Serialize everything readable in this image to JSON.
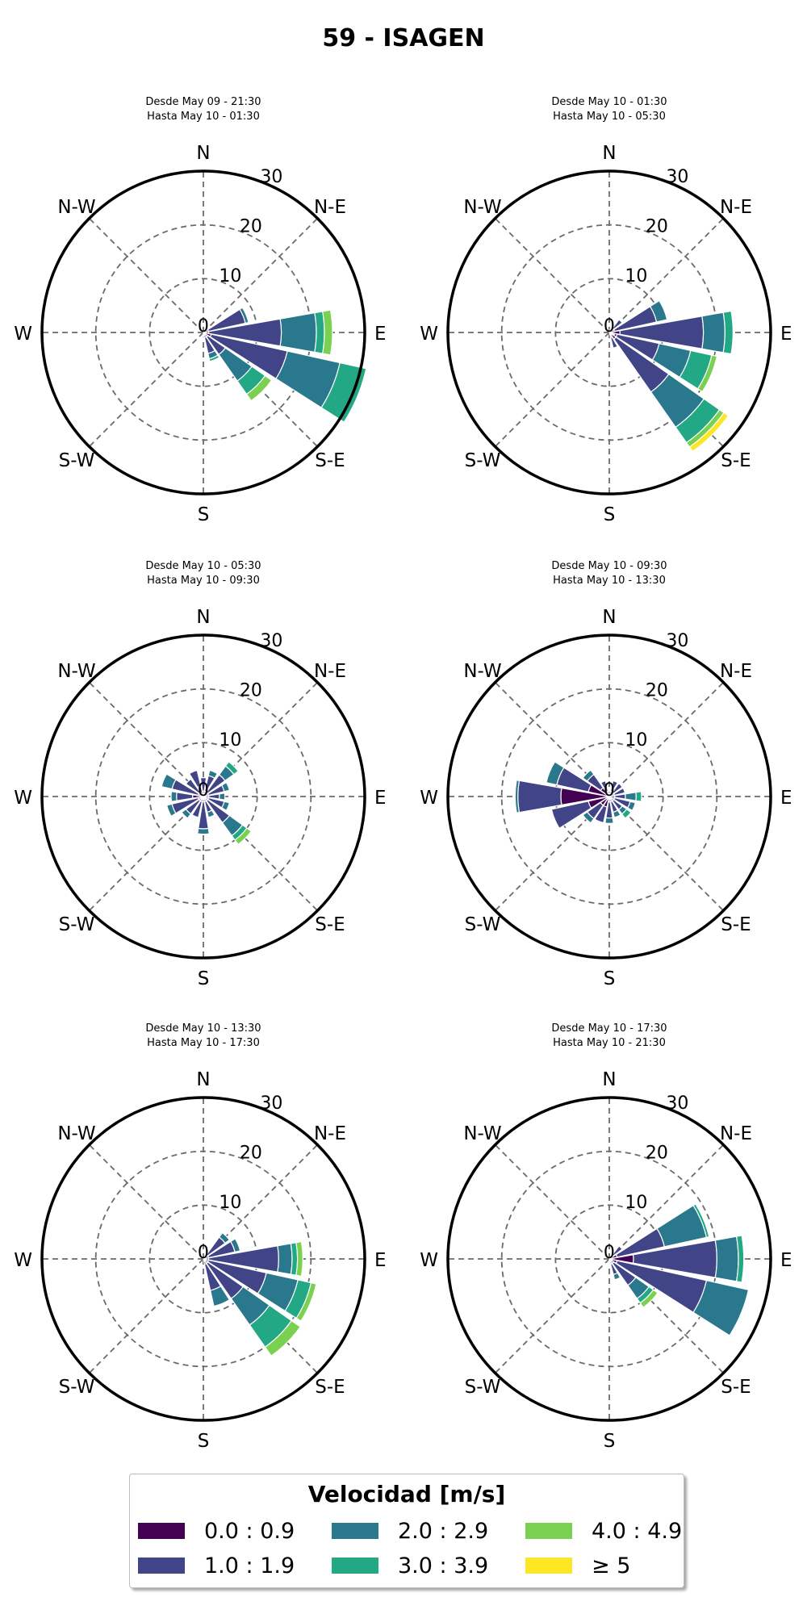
{
  "title": "59 - ISAGEN",
  "legend": {
    "title": "Velocidad [m/s]",
    "bins": [
      {
        "label": "0.0 : 0.9",
        "color": "#440154"
      },
      {
        "label": "1.0 : 1.9",
        "color": "#414487"
      },
      {
        "label": "2.0 : 2.9",
        "color": "#2a788e"
      },
      {
        "label": "3.0 : 3.9",
        "color": "#22a884"
      },
      {
        "label": "4.0 : 4.9",
        "color": "#7ad151"
      },
      {
        "label": "≥  5",
        "color": "#fde725"
      }
    ]
  },
  "chart_data": [
    {
      "type": "windrose",
      "title": "Desde May 09 - 21:30\nHasta May 10 - 01:30",
      "radial_ticks": [
        "0",
        "10",
        "20",
        "30"
      ],
      "rlim": [
        0,
        30
      ],
      "direction_labels": [
        "N",
        "N-E",
        "E",
        "S-E",
        "S",
        "S-W",
        "W",
        "N-W"
      ],
      "grid": true,
      "petals": [
        {
          "dir": 67.5,
          "width": 20,
          "segments": [
            1,
            7,
            0.6
          ]
        },
        {
          "dir": 90,
          "width": 20,
          "segments": [
            1,
            13.5,
            6.5,
            1.5,
            1.5
          ]
        },
        {
          "dir": 112.5,
          "width": 20,
          "segments": [
            1.5,
            14.5,
            10,
            5
          ]
        },
        {
          "dir": 135,
          "width": 20,
          "segments": [
            1,
            4,
            6,
            3,
            1.5
          ]
        },
        {
          "dir": 157.5,
          "width": 20,
          "segments": [
            1,
            3,
            1,
            0.5
          ]
        },
        {
          "dir": 180,
          "width": 16,
          "segments": [
            1
          ]
        },
        {
          "dir": 45,
          "width": 16,
          "segments": [
            1
          ]
        }
      ]
    },
    {
      "type": "windrose",
      "title": "Desde May 10 - 01:30\nHasta May 10 - 05:30",
      "radial_ticks": [
        "0",
        "10",
        "20",
        "30"
      ],
      "rlim": [
        0,
        30
      ],
      "direction_labels": [
        "N",
        "N-E",
        "E",
        "S-E",
        "S",
        "S-W",
        "W",
        "N-W"
      ],
      "grid": true,
      "petals": [
        {
          "dir": 45,
          "width": 16,
          "segments": [
            1,
            2
          ]
        },
        {
          "dir": 67.5,
          "width": 20,
          "segments": [
            1,
            8,
            2
          ]
        },
        {
          "dir": 90,
          "width": 20,
          "segments": [
            2,
            15.5,
            4,
            1.5
          ]
        },
        {
          "dir": 112.5,
          "width": 20,
          "segments": [
            1.5,
            8,
            6,
            4,
            1
          ]
        },
        {
          "dir": 135,
          "width": 20,
          "segments": [
            1.5,
            12,
            8,
            3.5,
            1,
            1
          ]
        },
        {
          "dir": 157.5,
          "width": 16,
          "segments": [
            1,
            2
          ]
        },
        {
          "dir": 112.5,
          "width": 8,
          "segments": [
            1
          ]
        },
        {
          "dir": 22.5,
          "width": 14,
          "segments": [
            1
          ]
        }
      ]
    },
    {
      "type": "windrose",
      "title": "Desde May 10 - 05:30\nHasta May 10 - 09:30",
      "radial_ticks": [
        "0",
        "10",
        "20",
        "30"
      ],
      "rlim": [
        0,
        30
      ],
      "direction_labels": [
        "N",
        "N-E",
        "E",
        "S-E",
        "S",
        "S-W",
        "W",
        "N-W"
      ],
      "grid": true,
      "petals": [
        {
          "dir": 0,
          "width": 18,
          "segments": [
            1,
            2.5
          ]
        },
        {
          "dir": 22.5,
          "width": 18,
          "segments": [
            1,
            3,
            1
          ]
        },
        {
          "dir": 45,
          "width": 18,
          "segments": [
            1,
            4,
            2,
            1
          ]
        },
        {
          "dir": 67.5,
          "width": 18,
          "segments": [
            1,
            3,
            1
          ]
        },
        {
          "dir": 90,
          "width": 18,
          "segments": [
            1,
            2,
            1
          ]
        },
        {
          "dir": 112.5,
          "width": 18,
          "segments": [
            1,
            3,
            1
          ]
        },
        {
          "dir": 135,
          "width": 18,
          "segments": [
            1,
            5,
            3,
            1,
            1
          ]
        },
        {
          "dir": 157.5,
          "width": 18,
          "segments": [
            1,
            2,
            1
          ]
        },
        {
          "dir": 180,
          "width": 18,
          "segments": [
            1,
            5,
            1
          ]
        },
        {
          "dir": 202.5,
          "width": 18,
          "segments": [
            1,
            3
          ]
        },
        {
          "dir": 225,
          "width": 18,
          "segments": [
            1,
            3,
            1
          ]
        },
        {
          "dir": 247.5,
          "width": 18,
          "segments": [
            1,
            5,
            1
          ]
        },
        {
          "dir": 270,
          "width": 18,
          "segments": [
            2,
            3,
            1
          ]
        },
        {
          "dir": 292.5,
          "width": 18,
          "segments": [
            1,
            5,
            2
          ]
        },
        {
          "dir": 315,
          "width": 18,
          "segments": [
            1,
            3
          ]
        },
        {
          "dir": 337.5,
          "width": 18,
          "segments": [
            2,
            3
          ]
        }
      ]
    },
    {
      "type": "windrose",
      "title": "Desde May 10 - 09:30\nHasta May 10 - 13:30",
      "radial_ticks": [
        "0",
        "10",
        "20",
        "30"
      ],
      "rlim": [
        0,
        30
      ],
      "direction_labels": [
        "N",
        "N-E",
        "E",
        "S-E",
        "S",
        "S-W",
        "W",
        "N-W"
      ],
      "grid": true,
      "petals": [
        {
          "dir": 270,
          "width": 20,
          "segments": [
            9,
            8,
            0.5
          ]
        },
        {
          "dir": 292.5,
          "width": 20,
          "segments": [
            4,
            6,
            2
          ]
        },
        {
          "dir": 315,
          "width": 20,
          "segments": [
            2,
            3,
            1
          ]
        },
        {
          "dir": 247.5,
          "width": 20,
          "segments": [
            4,
            7
          ]
        },
        {
          "dir": 225,
          "width": 20,
          "segments": [
            2,
            3,
            1
          ]
        },
        {
          "dir": 202.5,
          "width": 20,
          "segments": [
            2,
            3
          ]
        },
        {
          "dir": 180,
          "width": 18,
          "segments": [
            1,
            3,
            1
          ]
        },
        {
          "dir": 157.5,
          "width": 18,
          "segments": [
            1,
            2,
            1
          ]
        },
        {
          "dir": 135,
          "width": 18,
          "segments": [
            1,
            2,
            1,
            1
          ]
        },
        {
          "dir": 112.5,
          "width": 18,
          "segments": [
            1,
            3,
            1
          ]
        },
        {
          "dir": 90,
          "width": 18,
          "segments": [
            1,
            2,
            2,
            1
          ]
        },
        {
          "dir": 67.5,
          "width": 18,
          "segments": [
            1,
            2
          ]
        },
        {
          "dir": 45,
          "width": 18,
          "segments": [
            1,
            2
          ]
        },
        {
          "dir": 22.5,
          "width": 18,
          "segments": [
            1,
            2
          ]
        },
        {
          "dir": 0,
          "width": 18,
          "segments": [
            1
          ]
        },
        {
          "dir": 337.5,
          "width": 18,
          "segments": [
            1,
            2
          ]
        }
      ]
    },
    {
      "type": "windrose",
      "title": "Desde May 10 - 13:30\nHasta May 10 - 17:30",
      "radial_ticks": [
        "0",
        "10",
        "20",
        "30"
      ],
      "rlim": [
        0,
        30
      ],
      "direction_labels": [
        "N",
        "N-E",
        "E",
        "S-E",
        "S",
        "S-W",
        "W",
        "N-W"
      ],
      "grid": true,
      "petals": [
        {
          "dir": 45,
          "width": 18,
          "segments": [
            1,
            4,
            1
          ]
        },
        {
          "dir": 67.5,
          "width": 20,
          "segments": [
            1,
            5,
            1
          ]
        },
        {
          "dir": 90,
          "width": 20,
          "segments": [
            1,
            13,
            2.5,
            1,
            1
          ]
        },
        {
          "dir": 112.5,
          "width": 20,
          "segments": [
            1,
            11,
            6,
            2.5,
            1
          ]
        },
        {
          "dir": 135,
          "width": 20,
          "segments": [
            1,
            8,
            6,
            5,
            2
          ]
        },
        {
          "dir": 157.5,
          "width": 20,
          "segments": [
            1,
            5,
            3
          ]
        }
      ]
    },
    {
      "type": "windrose",
      "title": "Desde May 10 - 17:30\nHasta May 10 - 21:30",
      "radial_ticks": [
        "0",
        "10",
        "20",
        "30"
      ],
      "rlim": [
        0,
        30
      ],
      "direction_labels": [
        "N",
        "N-E",
        "E",
        "S-E",
        "S",
        "S-W",
        "W",
        "N-W"
      ],
      "grid": true,
      "petals": [
        {
          "dir": 45,
          "width": 16,
          "segments": [
            1,
            2
          ]
        },
        {
          "dir": 67.5,
          "width": 20,
          "segments": [
            1.5,
            9,
            8,
            0.5
          ]
        },
        {
          "dir": 90,
          "width": 20,
          "segments": [
            4.5,
            15.5,
            4,
            1
          ]
        },
        {
          "dir": 112.5,
          "width": 20,
          "segments": [
            1.5,
            17,
            8
          ]
        },
        {
          "dir": 135,
          "width": 20,
          "segments": [
            1,
            5,
            3,
            1,
            1
          ]
        },
        {
          "dir": 157.5,
          "width": 16,
          "segments": [
            1,
            2,
            1
          ]
        },
        {
          "dir": 180,
          "width": 10,
          "segments": [
            1
          ]
        }
      ]
    }
  ]
}
